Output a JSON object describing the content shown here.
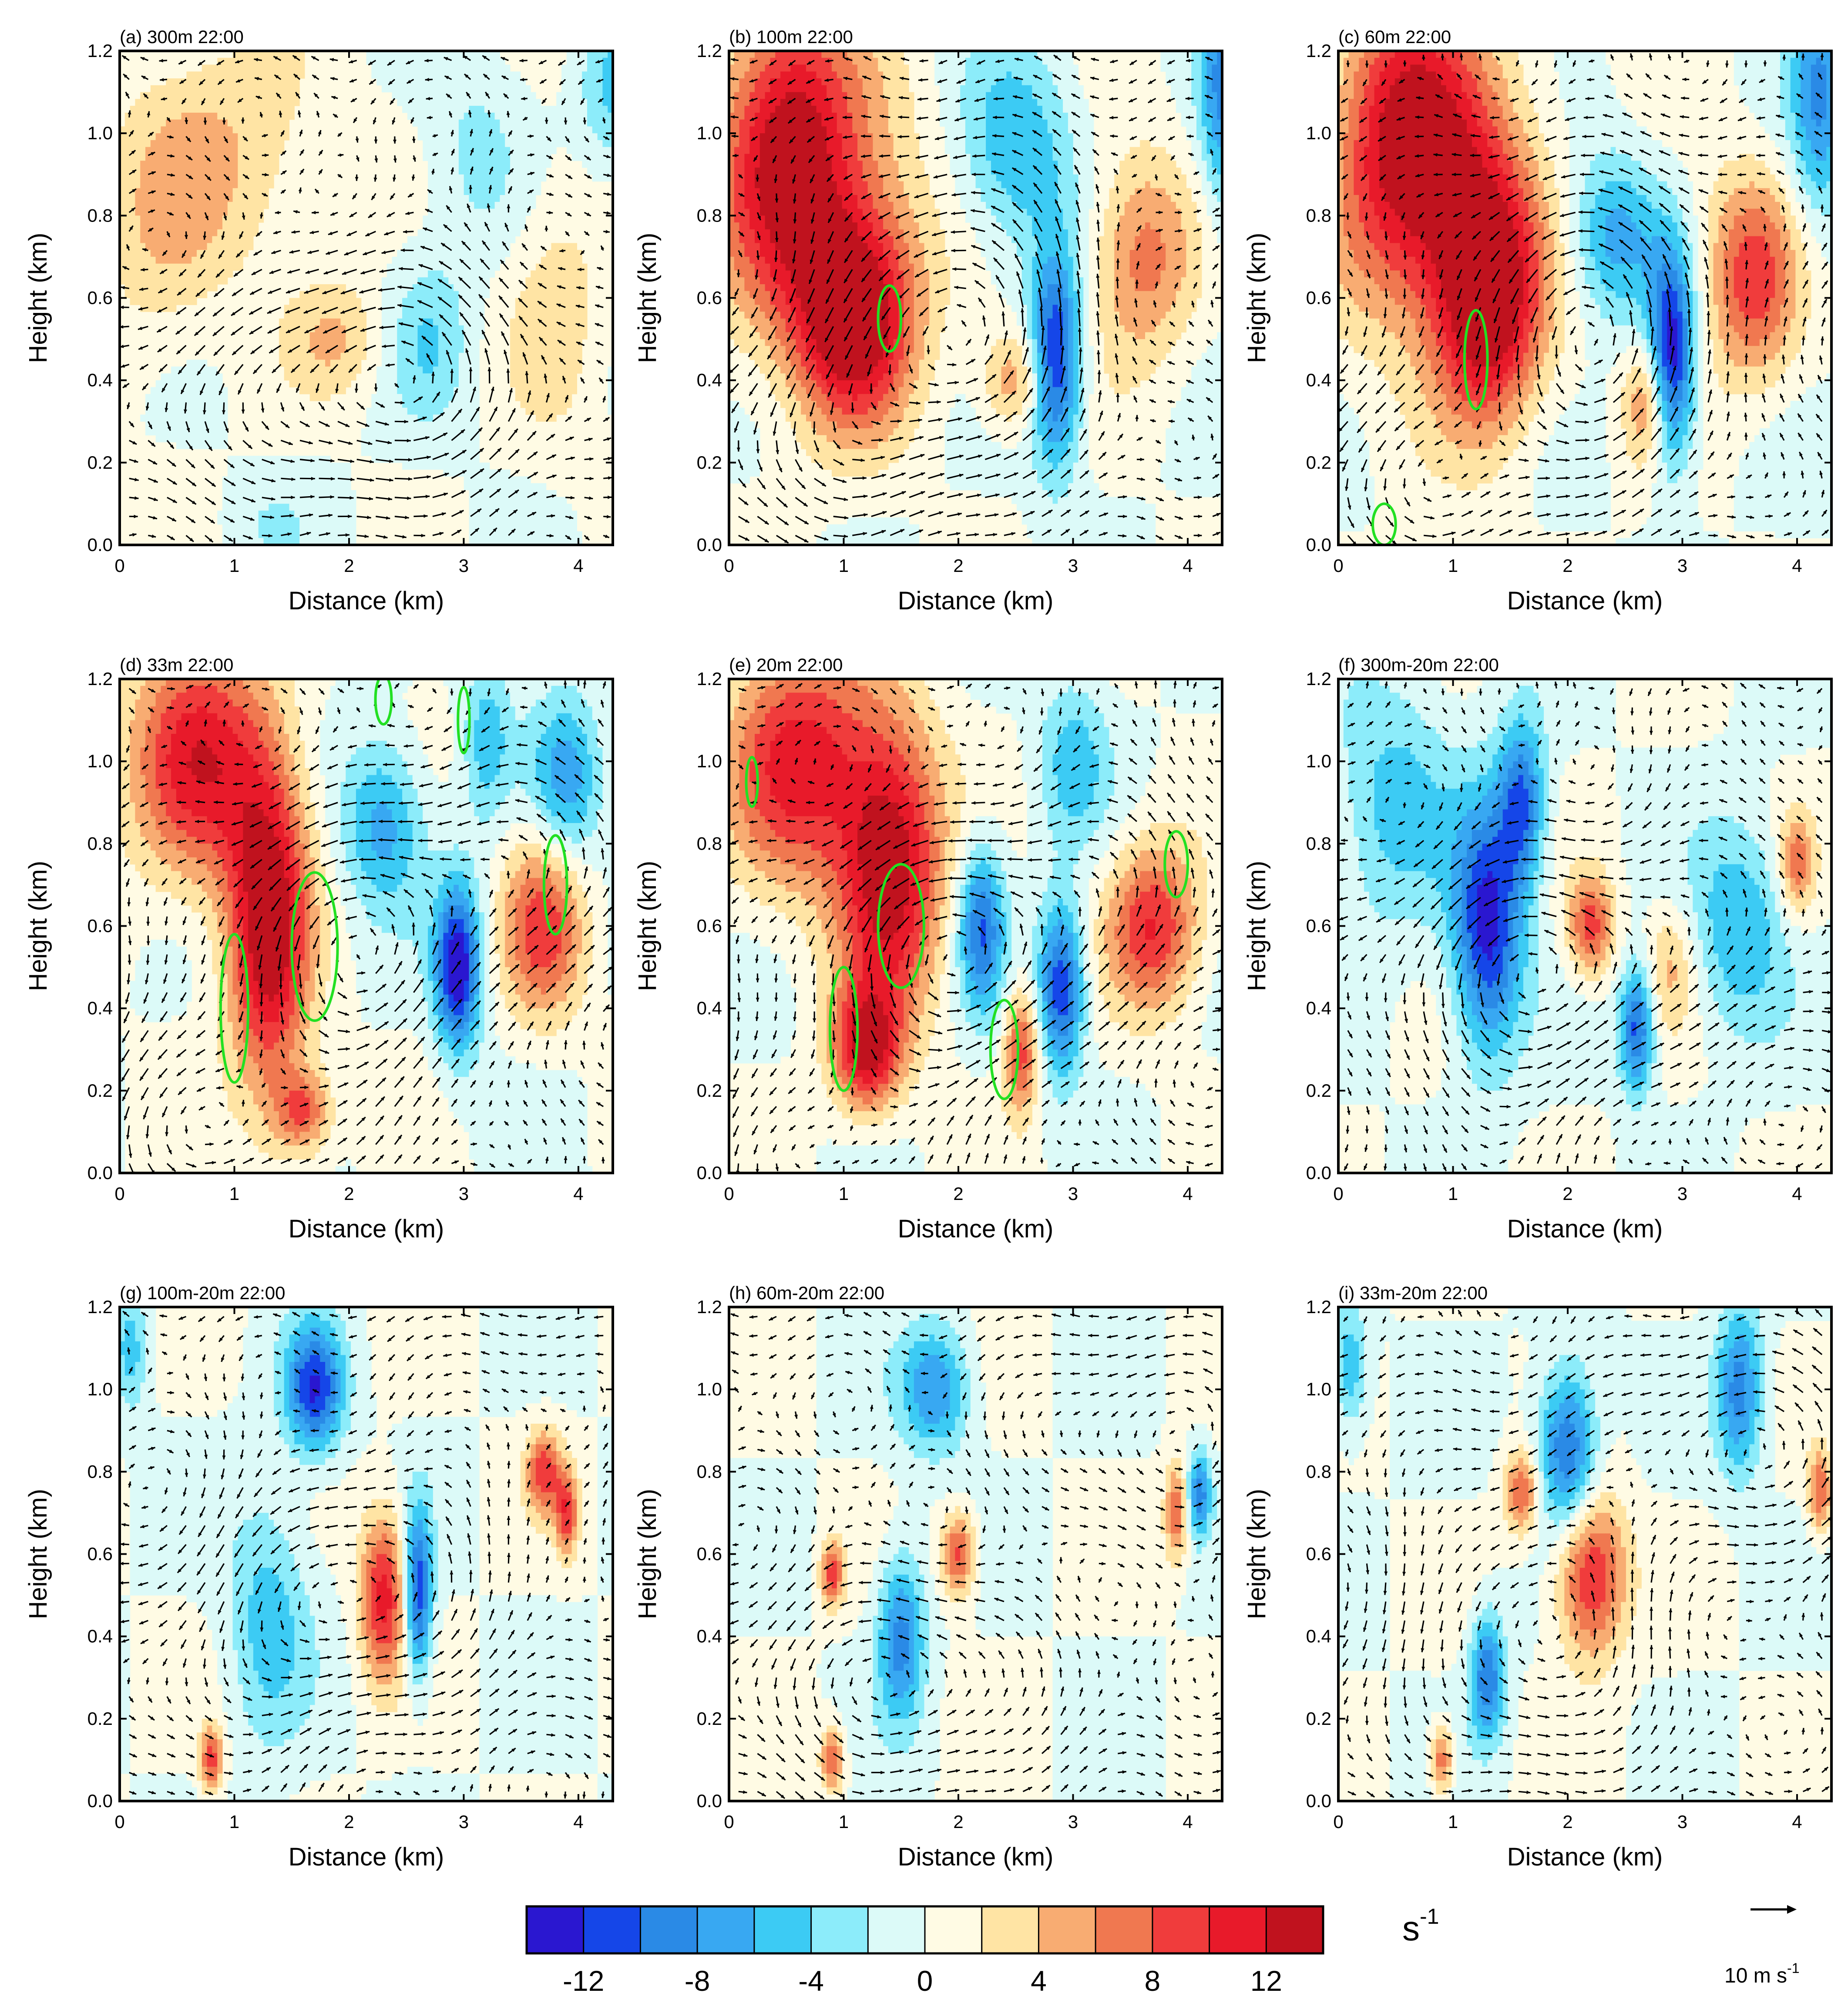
{
  "chart_data": {
    "type": "heatmap",
    "description_text": null,
    "x_axis": {
      "label": "Distance (km)",
      "range": [
        0,
        4.3
      ],
      "ticks": [
        0,
        1,
        2,
        3,
        4
      ],
      "tick_labels": [
        "0",
        "1",
        "2",
        "3",
        "4"
      ]
    },
    "y_axis": {
      "label": "Height (km)",
      "range": [
        0.0,
        1.2
      ],
      "ticks": [
        0.0,
        0.2,
        0.4,
        0.6,
        0.8,
        1.0,
        1.2
      ],
      "tick_labels": [
        "0.0",
        "0.2",
        "0.4",
        "0.6",
        "0.8",
        "1.0",
        "1.2"
      ]
    },
    "colorbar": {
      "levels": [
        -14,
        -12,
        -10,
        -8,
        -6,
        -4,
        -2,
        0,
        2,
        4,
        6,
        8,
        10,
        12,
        14
      ],
      "labeled_values": [
        -12,
        -8,
        -4,
        0,
        4,
        8,
        12
      ],
      "tick_labels": [
        "-12",
        "-8",
        "-4",
        "0",
        "4",
        "8",
        "12"
      ],
      "colors": [
        "#2a17d0",
        "#1546e8",
        "#2a8ae6",
        "#38a8f2",
        "#3ccbf4",
        "#8cecfa",
        "#dcfaf8",
        "#fffbe4",
        "#ffe4a4",
        "#f8ac72",
        "#f07850",
        "#f03c3c",
        "#e81a2a",
        "#c0121e"
      ],
      "unit_base": "s",
      "unit_exponent": "-1"
    },
    "reference_vector": {
      "base": "10 m s",
      "exponent": "-1"
    },
    "panels": [
      {
        "id": "a",
        "title": "(a) 300m 22:00",
        "green_contours": false,
        "blobs": [
          {
            "x": 0.9,
            "y": 0.95,
            "v": 4,
            "rx": 0.9,
            "ry": 0.3
          },
          {
            "x": 0.35,
            "y": 0.7,
            "v": 2.5,
            "rx": 0.5,
            "ry": 0.3
          },
          {
            "x": 1.9,
            "y": 0.5,
            "v": 4,
            "rx": 0.4,
            "ry": 0.14
          },
          {
            "x": 2.7,
            "y": 0.5,
            "v": -3.5,
            "rx": 0.35,
            "ry": 0.2
          },
          {
            "x": 3.1,
            "y": 0.95,
            "v": -2.5,
            "rx": 0.45,
            "ry": 0.25
          },
          {
            "x": 3.8,
            "y": 0.6,
            "v": 3,
            "rx": 0.45,
            "ry": 0.35
          },
          {
            "x": 4.3,
            "y": 1.1,
            "v": -4.5,
            "rx": 0.3,
            "ry": 0.2
          },
          {
            "x": 1.3,
            "y": 0.05,
            "v": -1.5,
            "rx": 0.4,
            "ry": 0.1
          }
        ],
        "vortices": [
          {
            "x": 2.4,
            "y": 0.42,
            "s": 1.0
          },
          {
            "x": 1.0,
            "y": 0.3,
            "s": 0.35
          }
        ]
      },
      {
        "id": "b",
        "title": "(b) 100m 22:00",
        "green_contours": true,
        "blobs": [
          {
            "x": 0.5,
            "y": 1.0,
            "v": 10,
            "rx": 0.55,
            "ry": 0.35
          },
          {
            "x": 1.1,
            "y": 0.55,
            "v": 13,
            "rx": 0.5,
            "ry": 0.25
          },
          {
            "x": 0.8,
            "y": 0.8,
            "v": 6,
            "rx": 0.9,
            "ry": 0.4
          },
          {
            "x": 2.85,
            "y": 0.45,
            "v": -13,
            "rx": 0.22,
            "ry": 0.25
          },
          {
            "x": 2.5,
            "y": 0.95,
            "v": -6,
            "rx": 0.5,
            "ry": 0.25
          },
          {
            "x": 3.6,
            "y": 0.7,
            "v": 7,
            "rx": 0.45,
            "ry": 0.25
          },
          {
            "x": 2.5,
            "y": 0.4,
            "v": 6,
            "rx": 0.3,
            "ry": 0.12
          },
          {
            "x": 4.3,
            "y": 1.1,
            "v": -8,
            "rx": 0.2,
            "ry": 0.3
          }
        ],
        "vortices": [
          {
            "x": 2.0,
            "y": 0.55,
            "s": 1.4
          },
          {
            "x": 0.9,
            "y": 0.25,
            "s": 0.6
          }
        ],
        "contours": [
          {
            "x": 1.4,
            "y": 0.55,
            "rx": 0.1,
            "ry": 0.08
          }
        ]
      },
      {
        "id": "c",
        "title": "(c) 60m 22:00",
        "green_contours": true,
        "blobs": [
          {
            "x": 0.6,
            "y": 1.0,
            "v": 10,
            "rx": 0.6,
            "ry": 0.35
          },
          {
            "x": 1.3,
            "y": 0.6,
            "v": 14,
            "rx": 0.45,
            "ry": 0.3
          },
          {
            "x": 0.9,
            "y": 0.85,
            "v": 6,
            "rx": 0.9,
            "ry": 0.4
          },
          {
            "x": 2.9,
            "y": 0.45,
            "v": -14,
            "rx": 0.2,
            "ry": 0.25
          },
          {
            "x": 2.4,
            "y": 0.75,
            "v": -7,
            "rx": 0.4,
            "ry": 0.2
          },
          {
            "x": 3.6,
            "y": 0.65,
            "v": 9,
            "rx": 0.4,
            "ry": 0.25
          },
          {
            "x": 2.7,
            "y": 0.35,
            "v": 7,
            "rx": 0.2,
            "ry": 0.15
          },
          {
            "x": 4.2,
            "y": 1.1,
            "v": -8,
            "rx": 0.25,
            "ry": 0.3
          }
        ],
        "vortices": [
          {
            "x": 2.2,
            "y": 0.5,
            "s": 1.4
          },
          {
            "x": 0.8,
            "y": 0.15,
            "s": 0.6
          }
        ],
        "contours": [
          {
            "x": 1.2,
            "y": 0.45,
            "rx": 0.1,
            "ry": 0.12
          },
          {
            "x": 0.4,
            "y": 0.05,
            "rx": 0.1,
            "ry": 0.05
          }
        ]
      },
      {
        "id": "d",
        "title": "(d) 33m 22:00",
        "green_contours": true,
        "blobs": [
          {
            "x": 0.7,
            "y": 1.0,
            "v": 11,
            "rx": 0.6,
            "ry": 0.3
          },
          {
            "x": 1.3,
            "y": 0.6,
            "v": 14,
            "rx": 0.35,
            "ry": 0.4
          },
          {
            "x": 2.95,
            "y": 0.5,
            "v": -14,
            "rx": 0.2,
            "ry": 0.2
          },
          {
            "x": 2.3,
            "y": 0.85,
            "v": -7,
            "rx": 0.35,
            "ry": 0.2
          },
          {
            "x": 3.7,
            "y": 0.6,
            "v": 9,
            "rx": 0.35,
            "ry": 0.22
          },
          {
            "x": 3.9,
            "y": 0.95,
            "v": -7,
            "rx": 0.3,
            "ry": 0.2
          },
          {
            "x": 3.2,
            "y": 1.05,
            "v": -5,
            "rx": 0.2,
            "ry": 0.2
          },
          {
            "x": 1.6,
            "y": 0.15,
            "v": 8,
            "rx": 0.25,
            "ry": 0.1
          }
        ],
        "vortices": [
          {
            "x": 2.1,
            "y": 0.5,
            "s": 1.2
          },
          {
            "x": 0.8,
            "y": 0.15,
            "s": 0.7
          },
          {
            "x": 3.5,
            "y": 0.8,
            "s": 0.5
          }
        ],
        "contours": [
          {
            "x": 1.0,
            "y": 0.4,
            "rx": 0.12,
            "ry": 0.18
          },
          {
            "x": 1.7,
            "y": 0.55,
            "rx": 0.2,
            "ry": 0.18
          },
          {
            "x": 3.8,
            "y": 0.7,
            "rx": 0.1,
            "ry": 0.12
          },
          {
            "x": 2.3,
            "y": 1.15,
            "rx": 0.07,
            "ry": 0.06
          },
          {
            "x": 3.0,
            "y": 1.1,
            "rx": 0.05,
            "ry": 0.08
          }
        ]
      },
      {
        "id": "e",
        "title": "(e) 20m 22:00",
        "green_contours": true,
        "blobs": [
          {
            "x": 0.6,
            "y": 1.0,
            "v": 11,
            "rx": 0.6,
            "ry": 0.3
          },
          {
            "x": 1.4,
            "y": 0.75,
            "v": 14,
            "rx": 0.45,
            "ry": 0.35
          },
          {
            "x": 1.2,
            "y": 0.3,
            "v": 12,
            "rx": 0.3,
            "ry": 0.15
          },
          {
            "x": 2.9,
            "y": 0.45,
            "v": -12,
            "rx": 0.2,
            "ry": 0.2
          },
          {
            "x": 2.2,
            "y": 0.6,
            "v": -10,
            "rx": 0.2,
            "ry": 0.2
          },
          {
            "x": 3.7,
            "y": 0.6,
            "v": 10,
            "rx": 0.4,
            "ry": 0.2
          },
          {
            "x": 2.55,
            "y": 0.3,
            "v": 9,
            "rx": 0.15,
            "ry": 0.15
          },
          {
            "x": 3.0,
            "y": 1.0,
            "v": -5,
            "rx": 0.3,
            "ry": 0.2
          }
        ],
        "vortices": [
          {
            "x": 2.0,
            "y": 0.5,
            "s": 1.2
          },
          {
            "x": 0.8,
            "y": 0.1,
            "s": 0.6
          },
          {
            "x": 3.4,
            "y": 0.8,
            "s": 0.5
          }
        ],
        "contours": [
          {
            "x": 1.0,
            "y": 0.35,
            "rx": 0.12,
            "ry": 0.15
          },
          {
            "x": 1.5,
            "y": 0.6,
            "rx": 0.2,
            "ry": 0.15
          },
          {
            "x": 2.4,
            "y": 0.3,
            "rx": 0.12,
            "ry": 0.12
          },
          {
            "x": 3.9,
            "y": 0.75,
            "rx": 0.1,
            "ry": 0.08
          },
          {
            "x": 0.2,
            "y": 0.95,
            "rx": 0.05,
            "ry": 0.06
          }
        ]
      },
      {
        "id": "f",
        "title": "(f) 300m-20m 22:00",
        "green_contours": false,
        "blobs": [
          {
            "x": 1.3,
            "y": 0.6,
            "v": -13,
            "rx": 0.3,
            "ry": 0.3
          },
          {
            "x": 1.6,
            "y": 0.9,
            "v": -10,
            "rx": 0.2,
            "ry": 0.2
          },
          {
            "x": 2.6,
            "y": 0.35,
            "v": -11,
            "rx": 0.15,
            "ry": 0.15
          },
          {
            "x": 2.2,
            "y": 0.6,
            "v": 9,
            "rx": 0.2,
            "ry": 0.12
          },
          {
            "x": 0.5,
            "y": 0.9,
            "v": -5,
            "rx": 0.5,
            "ry": 0.3
          },
          {
            "x": 3.5,
            "y": 0.6,
            "v": -6,
            "rx": 0.4,
            "ry": 0.25
          },
          {
            "x": 4.0,
            "y": 0.75,
            "v": 7,
            "rx": 0.15,
            "ry": 0.12
          },
          {
            "x": 2.9,
            "y": 0.5,
            "v": 4,
            "rx": 0.2,
            "ry": 0.15
          }
        ],
        "vortices": [
          {
            "x": 1.8,
            "y": 0.5,
            "s": 1.0
          },
          {
            "x": 3.6,
            "y": 0.75,
            "s": 0.5
          },
          {
            "x": 1.0,
            "y": 0.12,
            "s": 0.4
          }
        ]
      },
      {
        "id": "g",
        "title": "(g) 100m-20m 22:00",
        "green_contours": false,
        "blobs": [
          {
            "x": 1.7,
            "y": 1.0,
            "v": -12,
            "rx": 0.25,
            "ry": 0.15
          },
          {
            "x": 2.6,
            "y": 0.5,
            "v": -12,
            "rx": 0.12,
            "ry": 0.2
          },
          {
            "x": 2.3,
            "y": 0.5,
            "v": 11,
            "rx": 0.2,
            "ry": 0.2
          },
          {
            "x": 3.7,
            "y": 0.8,
            "v": 9,
            "rx": 0.15,
            "ry": 0.1
          },
          {
            "x": 3.9,
            "y": 0.7,
            "v": 9,
            "rx": 0.1,
            "ry": 0.1
          },
          {
            "x": 0.8,
            "y": 0.1,
            "v": 9,
            "rx": 0.1,
            "ry": 0.08
          },
          {
            "x": 1.3,
            "y": 0.45,
            "v": -5,
            "rx": 0.35,
            "ry": 0.3
          },
          {
            "x": 0.1,
            "y": 1.1,
            "v": -5,
            "rx": 0.15,
            "ry": 0.15
          }
        ],
        "vortices": [
          {
            "x": 2.0,
            "y": 0.55,
            "s": 0.9
          },
          {
            "x": 3.6,
            "y": 0.8,
            "s": 0.4
          },
          {
            "x": 0.6,
            "y": 0.15,
            "s": 0.4
          }
        ]
      },
      {
        "id": "h",
        "title": "(h) 60m-20m 22:00",
        "green_contours": false,
        "blobs": [
          {
            "x": 1.8,
            "y": 1.0,
            "v": -8,
            "rx": 0.3,
            "ry": 0.15
          },
          {
            "x": 1.5,
            "y": 0.4,
            "v": -9,
            "rx": 0.2,
            "ry": 0.2
          },
          {
            "x": 2.0,
            "y": 0.6,
            "v": 9,
            "rx": 0.15,
            "ry": 0.1
          },
          {
            "x": 0.9,
            "y": 0.55,
            "v": 9,
            "rx": 0.1,
            "ry": 0.08
          },
          {
            "x": 3.9,
            "y": 0.7,
            "v": 8,
            "rx": 0.1,
            "ry": 0.12
          },
          {
            "x": 4.1,
            "y": 0.75,
            "v": -9,
            "rx": 0.1,
            "ry": 0.1
          },
          {
            "x": 0.9,
            "y": 0.1,
            "v": 8,
            "rx": 0.1,
            "ry": 0.08
          }
        ],
        "vortices": [
          {
            "x": 1.5,
            "y": 0.3,
            "s": 0.6
          },
          {
            "x": 3.7,
            "y": 0.8,
            "s": 0.4
          }
        ]
      },
      {
        "id": "i",
        "title": "(i) 33m-20m 22:00",
        "green_contours": false,
        "blobs": [
          {
            "x": 2.0,
            "y": 0.85,
            "v": -11,
            "rx": 0.25,
            "ry": 0.2
          },
          {
            "x": 2.2,
            "y": 0.55,
            "v": 11,
            "rx": 0.3,
            "ry": 0.2
          },
          {
            "x": 1.3,
            "y": 0.3,
            "v": -10,
            "rx": 0.15,
            "ry": 0.15
          },
          {
            "x": 1.6,
            "y": 0.75,
            "v": 8,
            "rx": 0.15,
            "ry": 0.1
          },
          {
            "x": 3.5,
            "y": 1.0,
            "v": -9,
            "rx": 0.2,
            "ry": 0.2
          },
          {
            "x": 4.2,
            "y": 0.75,
            "v": 8,
            "rx": 0.1,
            "ry": 0.1
          },
          {
            "x": 0.1,
            "y": 1.05,
            "v": -6,
            "rx": 0.15,
            "ry": 0.15
          },
          {
            "x": 0.9,
            "y": 0.1,
            "v": 8,
            "rx": 0.1,
            "ry": 0.08
          }
        ],
        "vortices": [
          {
            "x": 1.7,
            "y": 0.45,
            "s": 0.9
          },
          {
            "x": 3.5,
            "y": 0.85,
            "s": 0.5
          }
        ]
      }
    ]
  }
}
